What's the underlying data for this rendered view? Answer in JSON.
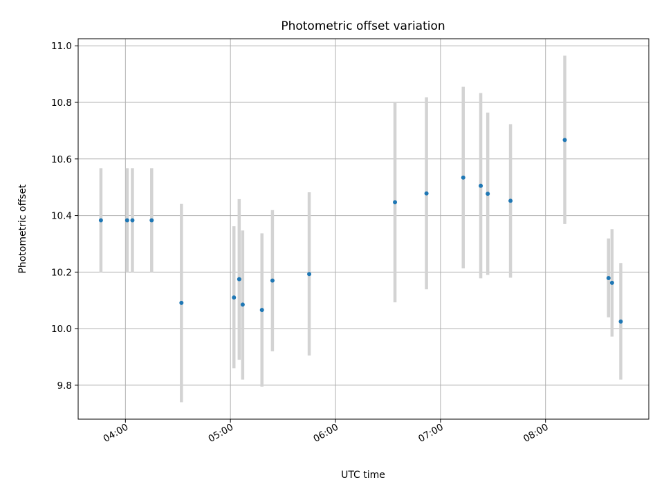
{
  "chart_data": {
    "type": "scatter",
    "title": "Photometric offset variation",
    "xlabel": "UTC time",
    "ylabel": "Photometric offset",
    "xlim": [
      "03:33",
      "08:59"
    ],
    "ylim": [
      9.68,
      11.025
    ],
    "x_ticks": [
      "04:00",
      "05:00",
      "06:00",
      "07:00",
      "08:00"
    ],
    "y_ticks": [
      9.8,
      10.0,
      10.2,
      10.4,
      10.6,
      10.8,
      11.0
    ],
    "grid": true,
    "colors": {
      "points": "#1f77b4",
      "errorbars": "#d3d3d3",
      "grid": "#b0b0b0"
    },
    "points": [
      {
        "x": "03:46",
        "y": 10.383,
        "ylow": 10.2,
        "yhigh": 10.567
      },
      {
        "x": "04:01",
        "y": 10.383,
        "ylow": 10.2,
        "yhigh": 10.567
      },
      {
        "x": "04:04",
        "y": 10.383,
        "ylow": 10.2,
        "yhigh": 10.567
      },
      {
        "x": "04:15",
        "y": 10.383,
        "ylow": 10.2,
        "yhigh": 10.567
      },
      {
        "x": "04:32",
        "y": 10.091,
        "ylow": 9.74,
        "yhigh": 10.441
      },
      {
        "x": "05:02",
        "y": 10.11,
        "ylow": 9.86,
        "yhigh": 10.362
      },
      {
        "x": "05:05",
        "y": 10.175,
        "ylow": 9.89,
        "yhigh": 10.458
      },
      {
        "x": "05:07",
        "y": 10.085,
        "ylow": 9.82,
        "yhigh": 10.347
      },
      {
        "x": "05:18",
        "y": 10.066,
        "ylow": 9.795,
        "yhigh": 10.337
      },
      {
        "x": "05:24",
        "y": 10.17,
        "ylow": 9.92,
        "yhigh": 10.419
      },
      {
        "x": "05:45",
        "y": 10.193,
        "ylow": 9.905,
        "yhigh": 10.482
      },
      {
        "x": "06:34",
        "y": 10.447,
        "ylow": 10.093,
        "yhigh": 10.8
      },
      {
        "x": "06:52",
        "y": 10.478,
        "ylow": 10.139,
        "yhigh": 10.818
      },
      {
        "x": "07:13",
        "y": 10.534,
        "ylow": 10.213,
        "yhigh": 10.855
      },
      {
        "x": "07:23",
        "y": 10.505,
        "ylow": 10.178,
        "yhigh": 10.833
      },
      {
        "x": "07:27",
        "y": 10.477,
        "ylow": 10.19,
        "yhigh": 10.764
      },
      {
        "x": "07:40",
        "y": 10.452,
        "ylow": 10.18,
        "yhigh": 10.723
      },
      {
        "x": "08:11",
        "y": 10.667,
        "ylow": 10.37,
        "yhigh": 10.965
      },
      {
        "x": "08:36",
        "y": 10.179,
        "ylow": 10.04,
        "yhigh": 10.319
      },
      {
        "x": "08:38",
        "y": 10.162,
        "ylow": 9.972,
        "yhigh": 10.352
      },
      {
        "x": "08:43",
        "y": 10.025,
        "ylow": 9.82,
        "yhigh": 10.232
      }
    ]
  }
}
